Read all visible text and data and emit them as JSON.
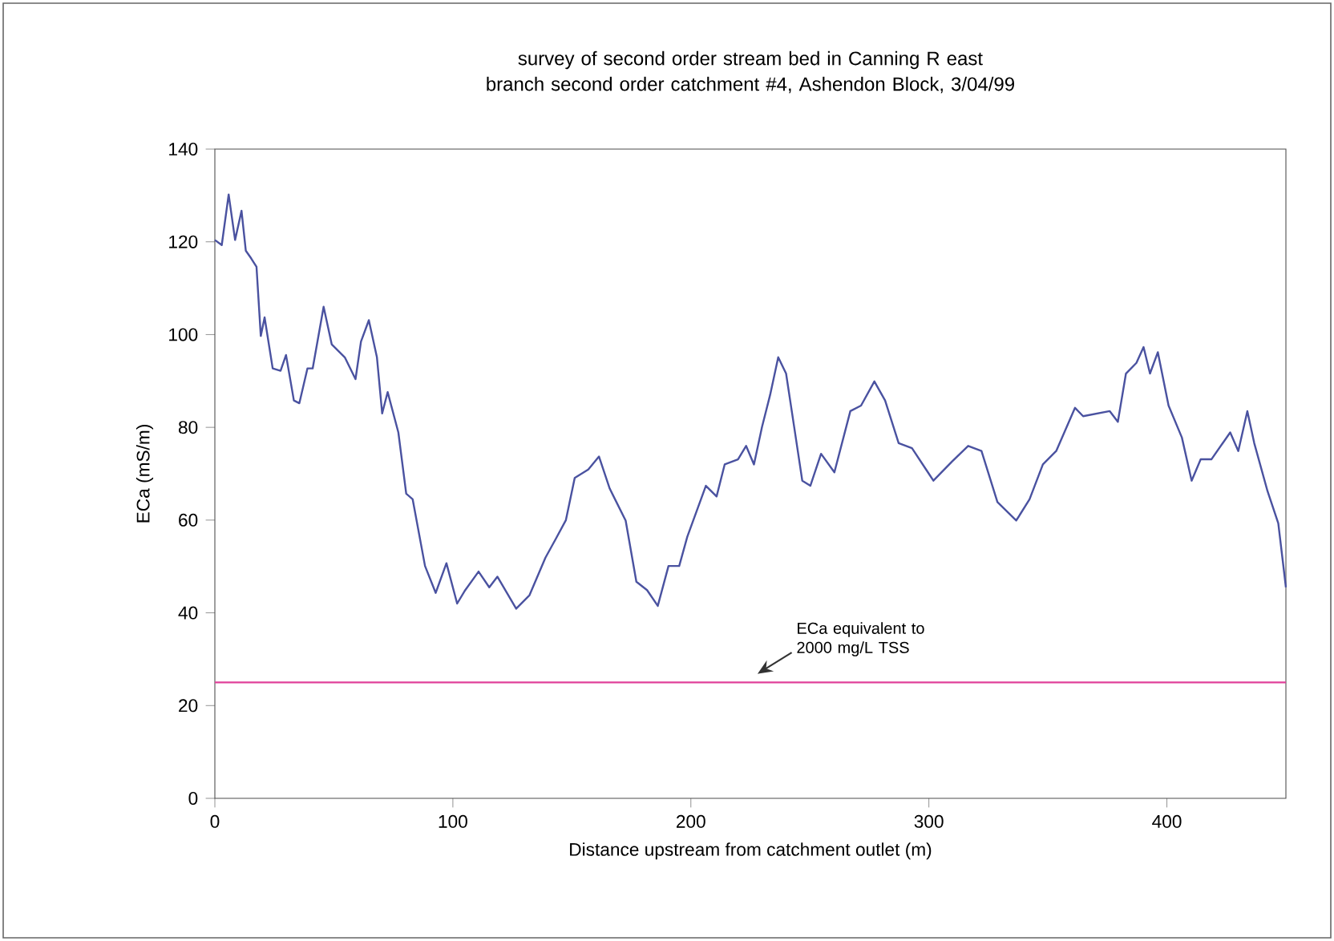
{
  "chart_data": {
    "type": "line",
    "title": "survey of second order stream bed in Canning R east branch second order catchment #4, Ashendon Block, 3/04/99",
    "xlabel": "Distance upstream from catchment outlet (m)",
    "ylabel": "ECa (mS/m)",
    "xlim": [
      0,
      450
    ],
    "xticks": [
      0,
      100,
      200,
      300,
      400
    ],
    "ylim": [
      0,
      140
    ],
    "yticks": [
      0,
      20,
      40,
      60,
      80,
      100,
      120,
      140
    ],
    "grid": false,
    "marker": "none",
    "line_style": "solid",
    "series": [
      {
        "color": "#4a52a0",
        "x": [
          0,
          2.9,
          5.8,
          8.5,
          11.2,
          13,
          15.3,
          17.5,
          19.3,
          20.9,
          24.3,
          27.6,
          29.9,
          33.2,
          35.5,
          38.9,
          41.1,
          45.7,
          49.1,
          54.6,
          59.1,
          61.4,
          64.7,
          68.1,
          70.3,
          72.6,
          77.1,
          80.4,
          83.1,
          88.3,
          92.8,
          97.3,
          101.8,
          105.2,
          110.8,
          115.3,
          118.7,
          126.6,
          132.2,
          138.9,
          143.3,
          147.5,
          151.2,
          156.9,
          161.4,
          165.9,
          172.6,
          177.1,
          181.6,
          186.1,
          190.6,
          195.1,
          198.5,
          206.3,
          210.8,
          214.2,
          219.8,
          223.2,
          226.5,
          229.9,
          233.3,
          236.7,
          240,
          243.4,
          246.8,
          250.2,
          254.7,
          260.3,
          267,
          271.5,
          277.1,
          281.6,
          287.3,
          292.9,
          299.6,
          301.9,
          309.7,
          316.5,
          322.1,
          328.8,
          336.7,
          342.3,
          347.9,
          353.5,
          361.4,
          364.8,
          376,
          379.4,
          382.8,
          387.2,
          390.2,
          392.9,
          396.2,
          400.7,
          406.3,
          410.4,
          414.2,
          418.7,
          426.6,
          430,
          433.8,
          436.7,
          442.3,
          446.8,
          450
        ],
        "values": [
          120.4,
          119.3,
          130.2,
          120.4,
          126.7,
          118.1,
          116.4,
          114.6,
          99.7,
          103.7,
          92.7,
          92.2,
          95.6,
          85.8,
          85.2,
          92.7,
          92.7,
          106,
          97.9,
          95.1,
          90.4,
          98.5,
          103.1,
          95.1,
          83,
          87.6,
          78.9,
          65.7,
          64.5,
          50.1,
          44.3,
          50.7,
          42,
          44.9,
          48.9,
          45.5,
          47.8,
          40.9,
          43.8,
          51.9,
          56,
          60,
          69.1,
          70.9,
          73.7,
          66.8,
          59.9,
          46.7,
          44.9,
          41.5,
          50.1,
          50.1,
          56.4,
          67.4,
          65.1,
          72,
          73.1,
          76,
          72,
          80.1,
          87,
          95.1,
          91.6,
          80.1,
          68.5,
          67.4,
          74.3,
          70.3,
          83.5,
          84.7,
          89.9,
          85.8,
          76.6,
          75.5,
          70.3,
          68.5,
          72.6,
          76,
          74.9,
          63.9,
          59.9,
          64.5,
          72,
          74.9,
          84.2,
          82.4,
          83.5,
          81.2,
          91.6,
          93.9,
          97.3,
          91.6,
          96.2,
          84.7,
          77.8,
          68.5,
          73.1,
          73.1,
          78.9,
          74.9,
          83.5,
          76.6,
          66.2,
          59.3,
          45.5
        ]
      }
    ],
    "ref_lines": [
      {
        "axis": "y",
        "value": 25,
        "color": "#e0409a",
        "line_style": "solid"
      }
    ],
    "annotations": [
      {
        "text": "ECa equivalent to 2000 mg/L TSS",
        "x": 228,
        "y": 25
      }
    ]
  }
}
